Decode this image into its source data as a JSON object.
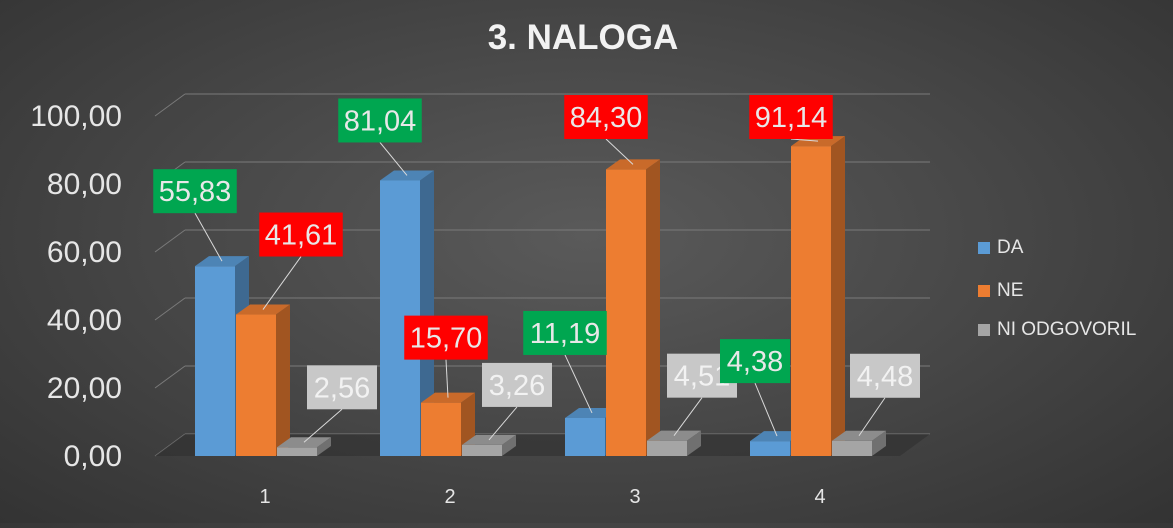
{
  "chart_data": {
    "type": "bar",
    "title": "3. NALOGA",
    "categories": [
      "1",
      "2",
      "3",
      "4"
    ],
    "series": [
      {
        "name": "DA",
        "values": [
          55.83,
          81.04,
          11.19,
          4.38
        ],
        "color": "#5b9bd5"
      },
      {
        "name": "NE",
        "values": [
          41.61,
          15.7,
          84.3,
          91.14
        ],
        "color": "#ed7d31"
      },
      {
        "name": "NI ODGOVORIL",
        "values": [
          2.56,
          3.26,
          4.51,
          4.48
        ],
        "color": "#a5a5a5"
      }
    ],
    "y_ticks": [
      "0,00",
      "20,00",
      "40,00",
      "60,00",
      "80,00",
      "100,00"
    ],
    "ylim": [
      0,
      100
    ],
    "grid": true,
    "legend_position": "right",
    "bar_style": "3d",
    "data_label_colors": {
      "DA": {
        "fill": "#00a650",
        "text": "#e8e8e8"
      },
      "NE": {
        "fill": "#ff0000",
        "text": "#e8e8e8"
      },
      "NI ODGOVORIL": {
        "fill": "#c8c8c8",
        "text": "#f2f2f2"
      }
    },
    "data_labels": [
      [
        "55,83",
        "41,61",
        "2,56"
      ],
      [
        "81,04",
        "15,70",
        "3,26"
      ],
      [
        "11,19",
        "84,30",
        "4,51"
      ],
      [
        "4,38",
        "91,14",
        "4,48"
      ]
    ],
    "xlabel": "",
    "ylabel": ""
  }
}
